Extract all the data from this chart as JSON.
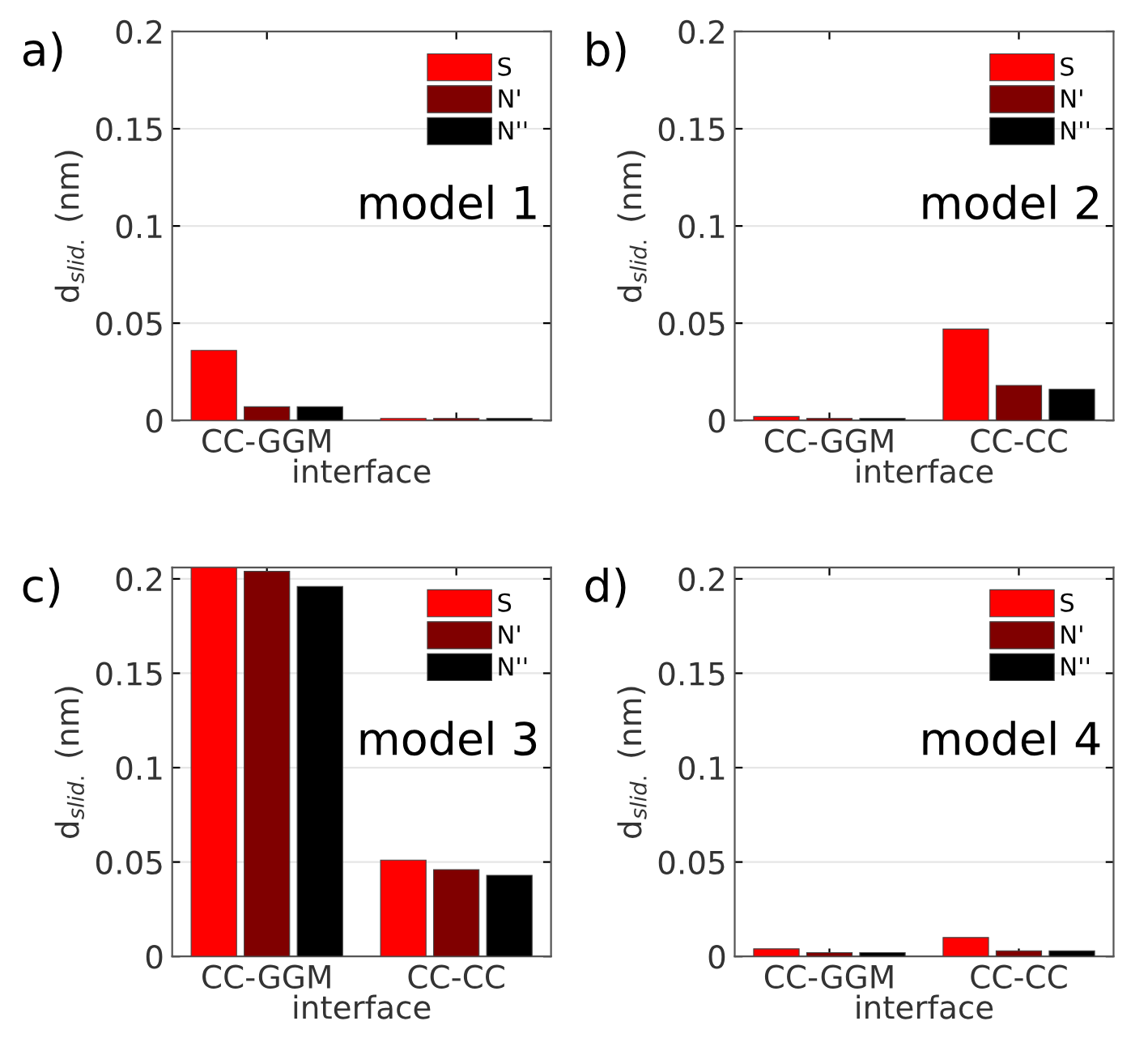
{
  "chart_data": [
    {
      "type": "bar",
      "title": "a)",
      "xlabel": "interface",
      "ylabel": "d$_{slid.}$ (nm)",
      "annotations": [
        "model 1"
      ],
      "categories": [
        "CC-GGM",
        null
      ],
      "series": [
        {
          "name": "S",
          "color": "#ff0000",
          "values": [
            0.036,
            0.001
          ]
        },
        {
          "name": "N'",
          "color": "#800000",
          "values": [
            0.007,
            0.001
          ]
        },
        {
          "name": "N''",
          "color": "#000000",
          "values": [
            0.007,
            0.001
          ]
        }
      ],
      "ylim": [
        0,
        0.2
      ],
      "yticks": [
        0,
        0.05,
        0.1,
        0.15,
        0.2
      ],
      "grid": "y",
      "legend": "top right"
    },
    {
      "type": "bar",
      "title": "b)",
      "xlabel": "interface",
      "ylabel": "d$_{slid.}$ (nm)",
      "annotations": [
        "model 2"
      ],
      "categories": [
        "CC-GGM",
        "CC-CC"
      ],
      "series": [
        {
          "name": "S",
          "color": "#ff0000",
          "values": [
            0.002,
            0.047
          ]
        },
        {
          "name": "N'",
          "color": "#800000",
          "values": [
            0.001,
            0.018
          ]
        },
        {
          "name": "N''",
          "color": "#000000",
          "values": [
            0.001,
            0.016
          ]
        }
      ],
      "ylim": [
        0,
        0.2
      ],
      "yticks": [
        0,
        0.05,
        0.1,
        0.15,
        0.2
      ],
      "grid": "y",
      "legend": "top right"
    },
    {
      "type": "bar",
      "title": "c)",
      "xlabel": "interface",
      "ylabel": "d$_{slid.}$ (nm)",
      "annotations": [
        "model 3"
      ],
      "categories": [
        "CC-GGM",
        "CC-CC"
      ],
      "series": [
        {
          "name": "S",
          "color": "#ff0000",
          "values": [
            0.206,
            0.051
          ]
        },
        {
          "name": "N'",
          "color": "#800000",
          "values": [
            0.204,
            0.046
          ]
        },
        {
          "name": "N''",
          "color": "#000000",
          "values": [
            0.196,
            0.043
          ]
        }
      ],
      "ylim": [
        0,
        0.206
      ],
      "yticks": [
        0,
        0.05,
        0.1,
        0.15,
        0.2
      ],
      "grid": "y",
      "legend": "top right"
    },
    {
      "type": "bar",
      "title": "d)",
      "xlabel": "interface",
      "ylabel": "d$_{slid.}$ (nm)",
      "annotations": [
        "model 4"
      ],
      "categories": [
        "CC-GGM",
        "CC-CC"
      ],
      "series": [
        {
          "name": "S",
          "color": "#ff0000",
          "values": [
            0.004,
            0.01
          ]
        },
        {
          "name": "N'",
          "color": "#800000",
          "values": [
            0.002,
            0.003
          ]
        },
        {
          "name": "N''",
          "color": "#000000",
          "values": [
            0.002,
            0.003
          ]
        }
      ],
      "ylim": [
        0,
        0.206
      ],
      "yticks": [
        0,
        0.05,
        0.1,
        0.15,
        0.2
      ],
      "grid": "y",
      "legend": "top right"
    }
  ]
}
